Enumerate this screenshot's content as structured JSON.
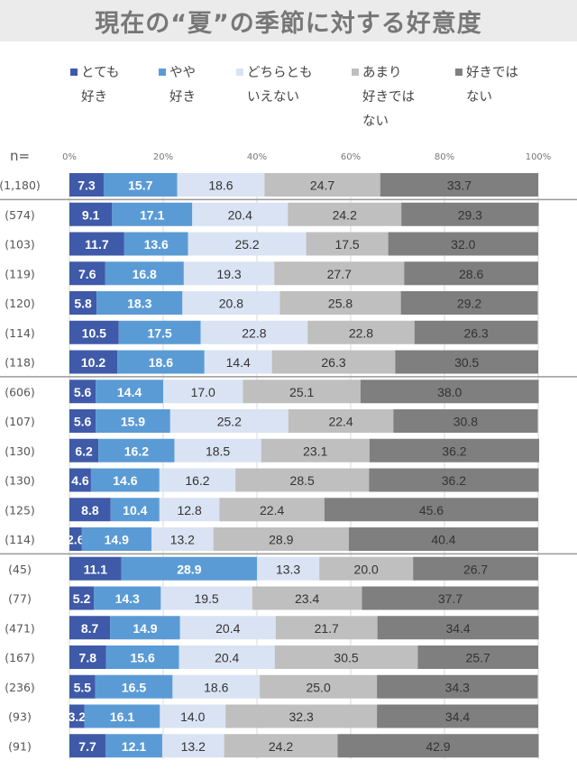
{
  "title": "現在の“夏”の季節に対する好意度",
  "chart_data": {
    "type": "bar",
    "orientation": "horizontal",
    "stacked": true,
    "percent": true,
    "title": "現在の“夏”の季節に対する好意度",
    "n_label": "n=",
    "xlim": [
      0,
      100
    ],
    "xticks": [
      "0%",
      "20%",
      "40%",
      "60%",
      "80%",
      "100%"
    ],
    "grid": true,
    "legend_position": "top",
    "categories": [
      "(1,180)",
      "(574)",
      "(103)",
      "(119)",
      "(120)",
      "(114)",
      "(118)",
      "(606)",
      "(107)",
      "(130)",
      "(130)",
      "(125)",
      "(114)",
      "(45)",
      "(77)",
      "(471)",
      "(167)",
      "(236)",
      "(93)",
      "(91)"
    ],
    "series": [
      {
        "name": "とても好き",
        "color": "#3f5aa8",
        "values": [
          7.3,
          9.1,
          11.7,
          7.6,
          5.8,
          10.5,
          10.2,
          5.6,
          5.6,
          6.2,
          4.6,
          8.8,
          2.6,
          11.1,
          5.2,
          8.7,
          7.8,
          5.5,
          3.2,
          7.7
        ]
      },
      {
        "name": "やや好き",
        "color": "#5b9bd5",
        "values": [
          15.7,
          17.1,
          13.6,
          16.8,
          18.3,
          17.5,
          18.6,
          14.4,
          15.9,
          16.2,
          14.6,
          10.4,
          14.9,
          28.9,
          14.3,
          14.9,
          15.6,
          16.5,
          16.1,
          12.1
        ]
      },
      {
        "name": "どちらともいえない",
        "color": "#dae3f3",
        "values": [
          18.6,
          20.4,
          25.2,
          19.3,
          20.8,
          22.8,
          14.4,
          17.0,
          25.2,
          18.5,
          16.2,
          12.8,
          13.2,
          13.3,
          19.5,
          20.4,
          20.4,
          18.6,
          14.0,
          13.2
        ]
      },
      {
        "name": "あまり好きではない",
        "color": "#bfbfbf",
        "values": [
          24.7,
          24.2,
          17.5,
          27.7,
          25.8,
          22.8,
          26.3,
          25.1,
          22.4,
          23.1,
          28.5,
          22.4,
          28.9,
          20.0,
          23.4,
          21.7,
          30.5,
          25.0,
          32.3,
          24.2
        ]
      },
      {
        "name": "好きではない",
        "color": "#7f7f7f",
        "values": [
          33.7,
          29.3,
          32.0,
          28.6,
          29.2,
          26.3,
          30.5,
          38.0,
          30.8,
          36.2,
          36.2,
          45.6,
          40.4,
          26.7,
          37.7,
          34.4,
          25.7,
          34.3,
          34.4,
          42.9
        ]
      }
    ],
    "group_breaks_after": [
      0,
      6,
      12
    ]
  },
  "legend": [
    {
      "line1": "とても",
      "line2": "好き"
    },
    {
      "line1": "やや",
      "line2": "好き"
    },
    {
      "line1": "どちらとも",
      "line2": "いえない"
    },
    {
      "line1": "あまり",
      "line2": "好きでは\nない"
    },
    {
      "line1": "好きでは",
      "line2": "ない"
    }
  ]
}
